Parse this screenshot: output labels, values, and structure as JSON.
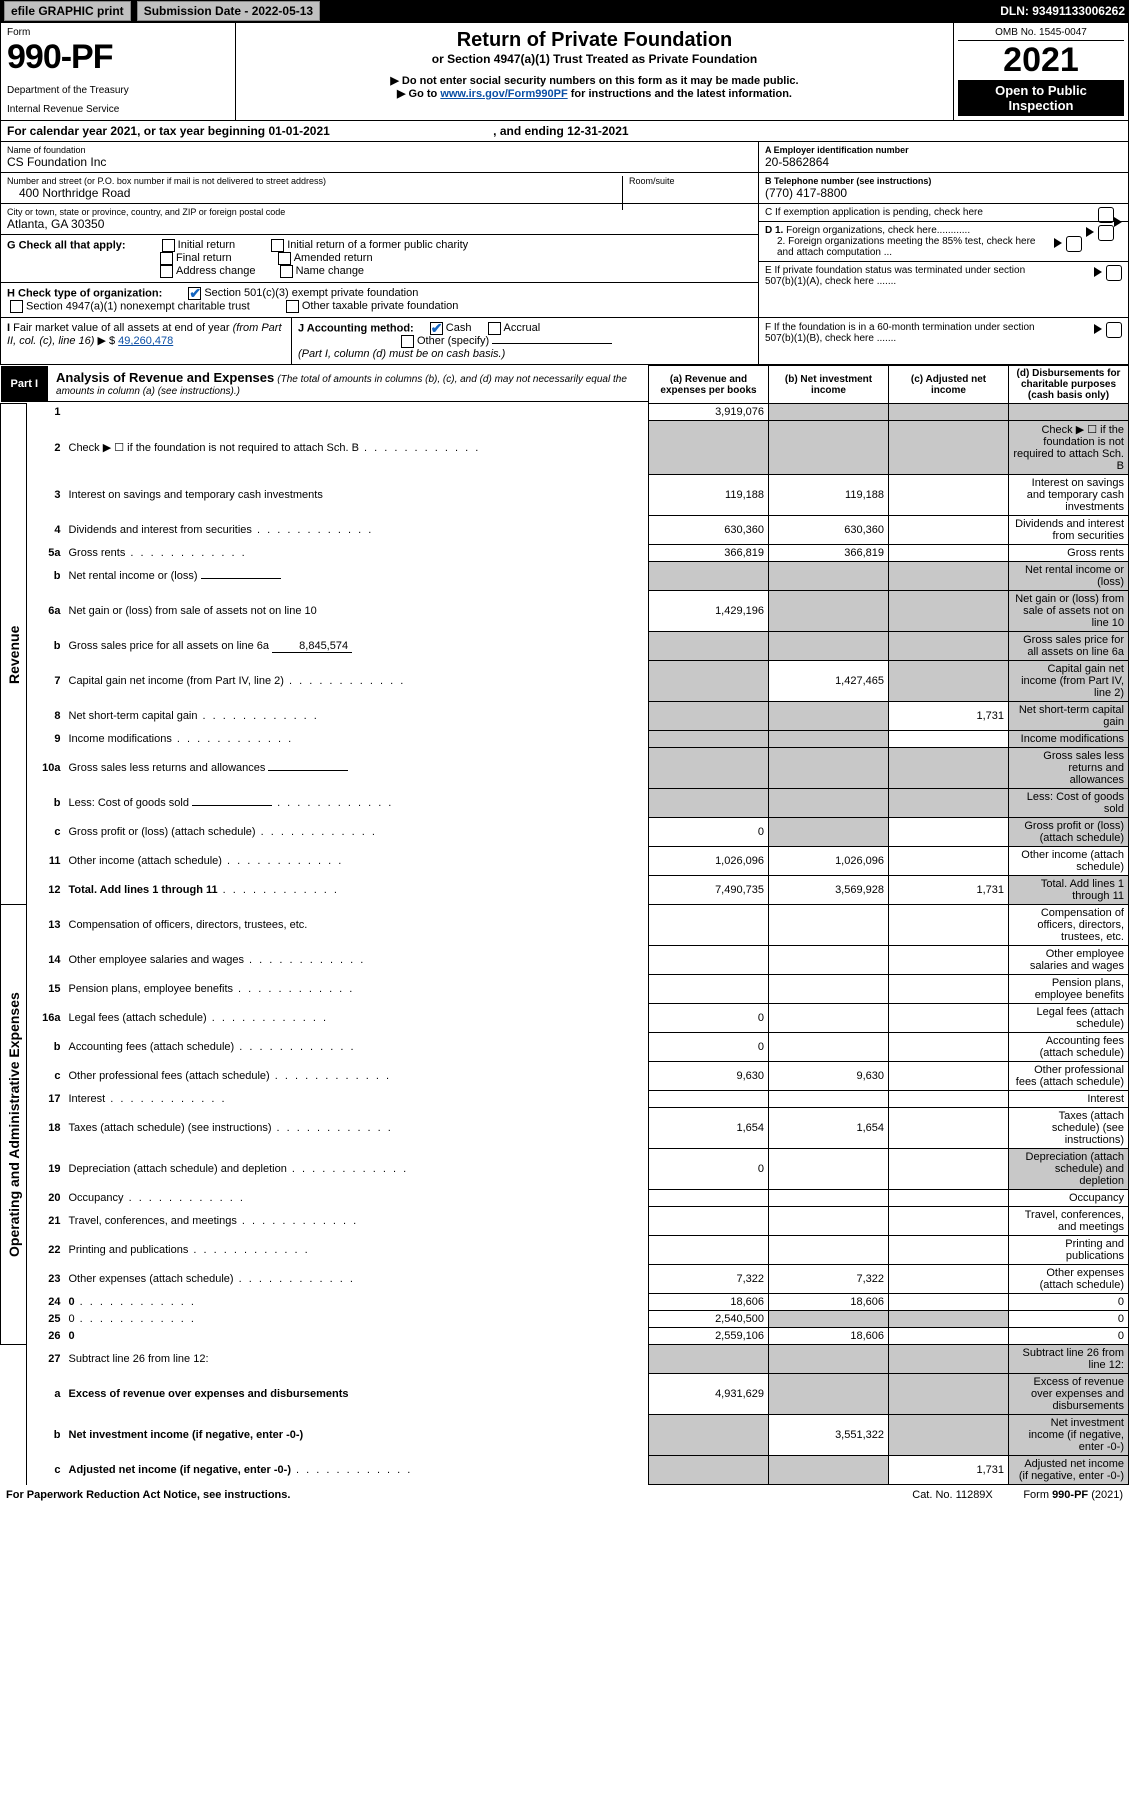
{
  "topbar": {
    "efile": "efile GRAPHIC print",
    "subdate_label": "Submission Date - 2022-05-13",
    "dln": "DLN: 93491133006262"
  },
  "header": {
    "form_label": "Form",
    "form_number": "990-PF",
    "dept1": "Department of the Treasury",
    "dept2": "Internal Revenue Service",
    "title": "Return of Private Foundation",
    "subtitle": "or Section 4947(a)(1) Trust Treated as Private Foundation",
    "instr1": "▶ Do not enter social security numbers on this form as it may be made public.",
    "instr2_pre": "▶ Go to ",
    "instr2_link": "www.irs.gov/Form990PF",
    "instr2_post": " for instructions and the latest information.",
    "omb": "OMB No. 1545-0047",
    "year": "2021",
    "open": "Open to Public Inspection"
  },
  "cal": {
    "line": "For calendar year 2021, or tax year beginning 01-01-2021",
    "end_lbl": ", and ending 12-31-2021"
  },
  "name": {
    "lbl": "Name of foundation",
    "val": "CS Foundation Inc"
  },
  "addr": {
    "lbl": "Number and street (or P.O. box number if mail is not delivered to street address)",
    "val": "400 Northridge Road",
    "room_lbl": "Room/suite"
  },
  "city": {
    "lbl": "City or town, state or province, country, and ZIP or foreign postal code",
    "val": "Atlanta, GA  30350"
  },
  "ein": {
    "lbl": "A Employer identification number",
    "val": "20-5862864"
  },
  "tel": {
    "lbl": "B Telephone number (see instructions)",
    "val": "(770) 417-8800"
  },
  "boxC": "C If exemption application is pending, check here",
  "boxD1": "D 1. Foreign organizations, check here............",
  "boxD2": "2. Foreign organizations meeting the 85% test, check here and attach computation ...",
  "boxE": "E  If private foundation status was terminated under section 507(b)(1)(A), check here .......",
  "boxF": "F  If the foundation is in a 60-month termination under section 507(b)(1)(B), check here .......",
  "G": {
    "lbl": "G Check all that apply:",
    "opts": [
      "Initial return",
      "Initial return of a former public charity",
      "Final return",
      "Amended return",
      "Address change",
      "Name change"
    ]
  },
  "H": {
    "lbl": "H Check type of organization:",
    "opt1": "Section 501(c)(3) exempt private foundation",
    "opt2": "Section 4947(a)(1) nonexempt charitable trust",
    "opt3": "Other taxable private foundation"
  },
  "I": {
    "lbl": "I Fair market value of all assets at end of year (from Part II, col. (c), line 16) ▶ $",
    "val": "49,260,478"
  },
  "J": {
    "lbl": "J Accounting method:",
    "cash": "Cash",
    "accrual": "Accrual",
    "other": "Other (specify)",
    "note": "(Part I, column (d) must be on cash basis.)"
  },
  "part1": {
    "badge": "Part I",
    "title": "Analysis of Revenue and Expenses",
    "note": "(The total of amounts in columns (b), (c), and (d) may not necessarily equal the amounts in column (a) (see instructions).)",
    "colA": "(a)   Revenue and expenses per books",
    "colB": "(b)   Net investment income",
    "colC": "(c)   Adjusted net income",
    "colD": "(d)  Disbursements for charitable purposes (cash basis only)"
  },
  "sides": {
    "rev": "Revenue",
    "exp": "Operating and Administrative Expenses"
  },
  "rows": {
    "r1": {
      "n": "1",
      "d": "",
      "a": "3,919,076",
      "b": "",
      "c": "",
      "shadeB": true,
      "shadeC": true,
      "shadeD": true
    },
    "r2": {
      "n": "2",
      "d": "Check ▶ ☐ if the foundation is not required to attach Sch. B",
      "dots": true,
      "shadeA": true,
      "shadeB": true,
      "shadeC": true,
      "shadeD": true
    },
    "r3": {
      "n": "3",
      "d": "Interest on savings and temporary cash investments",
      "a": "119,188",
      "b": "119,188"
    },
    "r4": {
      "n": "4",
      "d": "Dividends and interest from securities",
      "dots": true,
      "a": "630,360",
      "b": "630,360"
    },
    "r5a": {
      "n": "5a",
      "d": "Gross rents",
      "dots": true,
      "a": "366,819",
      "b": "366,819"
    },
    "r5b": {
      "n": "b",
      "d": "Net rental income or (loss)",
      "inline": "",
      "shadeA": true,
      "shadeB": true,
      "shadeC": true,
      "shadeD": true
    },
    "r6a": {
      "n": "6a",
      "d": "Net gain or (loss) from sale of assets not on line 10",
      "a": "1,429,196",
      "shadeB": true,
      "shadeC": true,
      "shadeD": true
    },
    "r6b": {
      "n": "b",
      "d": "Gross sales price for all assets on line 6a",
      "inline": "8,845,574",
      "shadeA": true,
      "shadeB": true,
      "shadeC": true,
      "shadeD": true
    },
    "r7": {
      "n": "7",
      "d": "Capital gain net income (from Part IV, line 2)",
      "dots": true,
      "shadeA": true,
      "b": "1,427,465",
      "shadeC": true,
      "shadeD": true
    },
    "r8": {
      "n": "8",
      "d": "Net short-term capital gain",
      "dots": true,
      "shadeA": true,
      "shadeB": true,
      "c": "1,731",
      "shadeD": true
    },
    "r9": {
      "n": "9",
      "d": "Income modifications",
      "dots": true,
      "shadeA": true,
      "shadeB": true,
      "shadeD": true
    },
    "r10a": {
      "n": "10a",
      "d": "Gross sales less returns and allowances",
      "inline": "",
      "shadeA": true,
      "shadeB": true,
      "shadeC": true,
      "shadeD": true
    },
    "r10b": {
      "n": "b",
      "d": "Less: Cost of goods sold",
      "dots": true,
      "inline": "",
      "shadeA": true,
      "shadeB": true,
      "shadeC": true,
      "shadeD": true
    },
    "r10c": {
      "n": "c",
      "d": "Gross profit or (loss) (attach schedule)",
      "dots": true,
      "a": "0",
      "shadeB": true,
      "shadeD": true
    },
    "r11": {
      "n": "11",
      "d": "Other income (attach schedule)",
      "dots": true,
      "a": "1,026,096",
      "b": "1,026,096"
    },
    "r12": {
      "n": "12",
      "d": "Total. Add lines 1 through 11",
      "dots": true,
      "bold": true,
      "a": "7,490,735",
      "b": "3,569,928",
      "c": "1,731",
      "shadeD": true
    },
    "r13": {
      "n": "13",
      "d": "Compensation of officers, directors, trustees, etc."
    },
    "r14": {
      "n": "14",
      "d": "Other employee salaries and wages",
      "dots": true
    },
    "r15": {
      "n": "15",
      "d": "Pension plans, employee benefits",
      "dots": true
    },
    "r16a": {
      "n": "16a",
      "d": "Legal fees (attach schedule)",
      "dots": true,
      "a": "0"
    },
    "r16b": {
      "n": "b",
      "d": "Accounting fees (attach schedule)",
      "dots": true,
      "a": "0"
    },
    "r16c": {
      "n": "c",
      "d": "Other professional fees (attach schedule)",
      "dots": true,
      "a": "9,630",
      "b": "9,630"
    },
    "r17": {
      "n": "17",
      "d": "Interest",
      "dots": true
    },
    "r18": {
      "n": "18",
      "d": "Taxes (attach schedule) (see instructions)",
      "dots": true,
      "a": "1,654",
      "b": "1,654"
    },
    "r19": {
      "n": "19",
      "d": "Depreciation (attach schedule) and depletion",
      "dots": true,
      "a": "0",
      "shadeD": true
    },
    "r20": {
      "n": "20",
      "d": "Occupancy",
      "dots": true
    },
    "r21": {
      "n": "21",
      "d": "Travel, conferences, and meetings",
      "dots": true
    },
    "r22": {
      "n": "22",
      "d": "Printing and publications",
      "dots": true
    },
    "r23": {
      "n": "23",
      "d": "Other expenses (attach schedule)",
      "dots": true,
      "a": "7,322",
      "b": "7,322"
    },
    "r24": {
      "n": "24",
      "d": "0",
      "dots": true,
      "bold": true,
      "a": "18,606",
      "b": "18,606"
    },
    "r25": {
      "n": "25",
      "d": "0",
      "dots": true,
      "a": "2,540,500",
      "shadeB": true,
      "shadeC": true
    },
    "r26": {
      "n": "26",
      "d": "0",
      "bold": true,
      "a": "2,559,106",
      "b": "18,606"
    },
    "r27": {
      "n": "27",
      "d": "Subtract line 26 from line 12:",
      "shadeA": true,
      "shadeB": true,
      "shadeC": true,
      "shadeD": true
    },
    "r27a": {
      "n": "a",
      "d": "Excess of revenue over expenses and disbursements",
      "bold": true,
      "a": "4,931,629",
      "shadeB": true,
      "shadeC": true,
      "shadeD": true
    },
    "r27b": {
      "n": "b",
      "d": "Net investment income (if negative, enter -0-)",
      "bold": true,
      "shadeA": true,
      "b": "3,551,322",
      "shadeC": true,
      "shadeD": true
    },
    "r27c": {
      "n": "c",
      "d": "Adjusted net income (if negative, enter -0-)",
      "dots": true,
      "bold": true,
      "shadeA": true,
      "shadeB": true,
      "c": "1,731",
      "shadeD": true
    }
  },
  "row_order_rev": [
    "r1",
    "r2",
    "r3",
    "r4",
    "r5a",
    "r5b",
    "r6a",
    "r6b",
    "r7",
    "r8",
    "r9",
    "r10a",
    "r10b",
    "r10c",
    "r11",
    "r12"
  ],
  "row_order_exp": [
    "r13",
    "r14",
    "r15",
    "r16a",
    "r16b",
    "r16c",
    "r17",
    "r18",
    "r19",
    "r20",
    "r21",
    "r22",
    "r23",
    "r24",
    "r25",
    "r26"
  ],
  "row_order_bot": [
    "r27",
    "r27a",
    "r27b",
    "r27c"
  ],
  "footer": {
    "left": "For Paperwork Reduction Act Notice, see instructions.",
    "mid": "Cat. No. 11289X",
    "right": "Form 990-PF (2021)"
  },
  "colors": {
    "shade": "#c8c8c8",
    "link": "#0b4fa5",
    "check": "#1565c0"
  }
}
